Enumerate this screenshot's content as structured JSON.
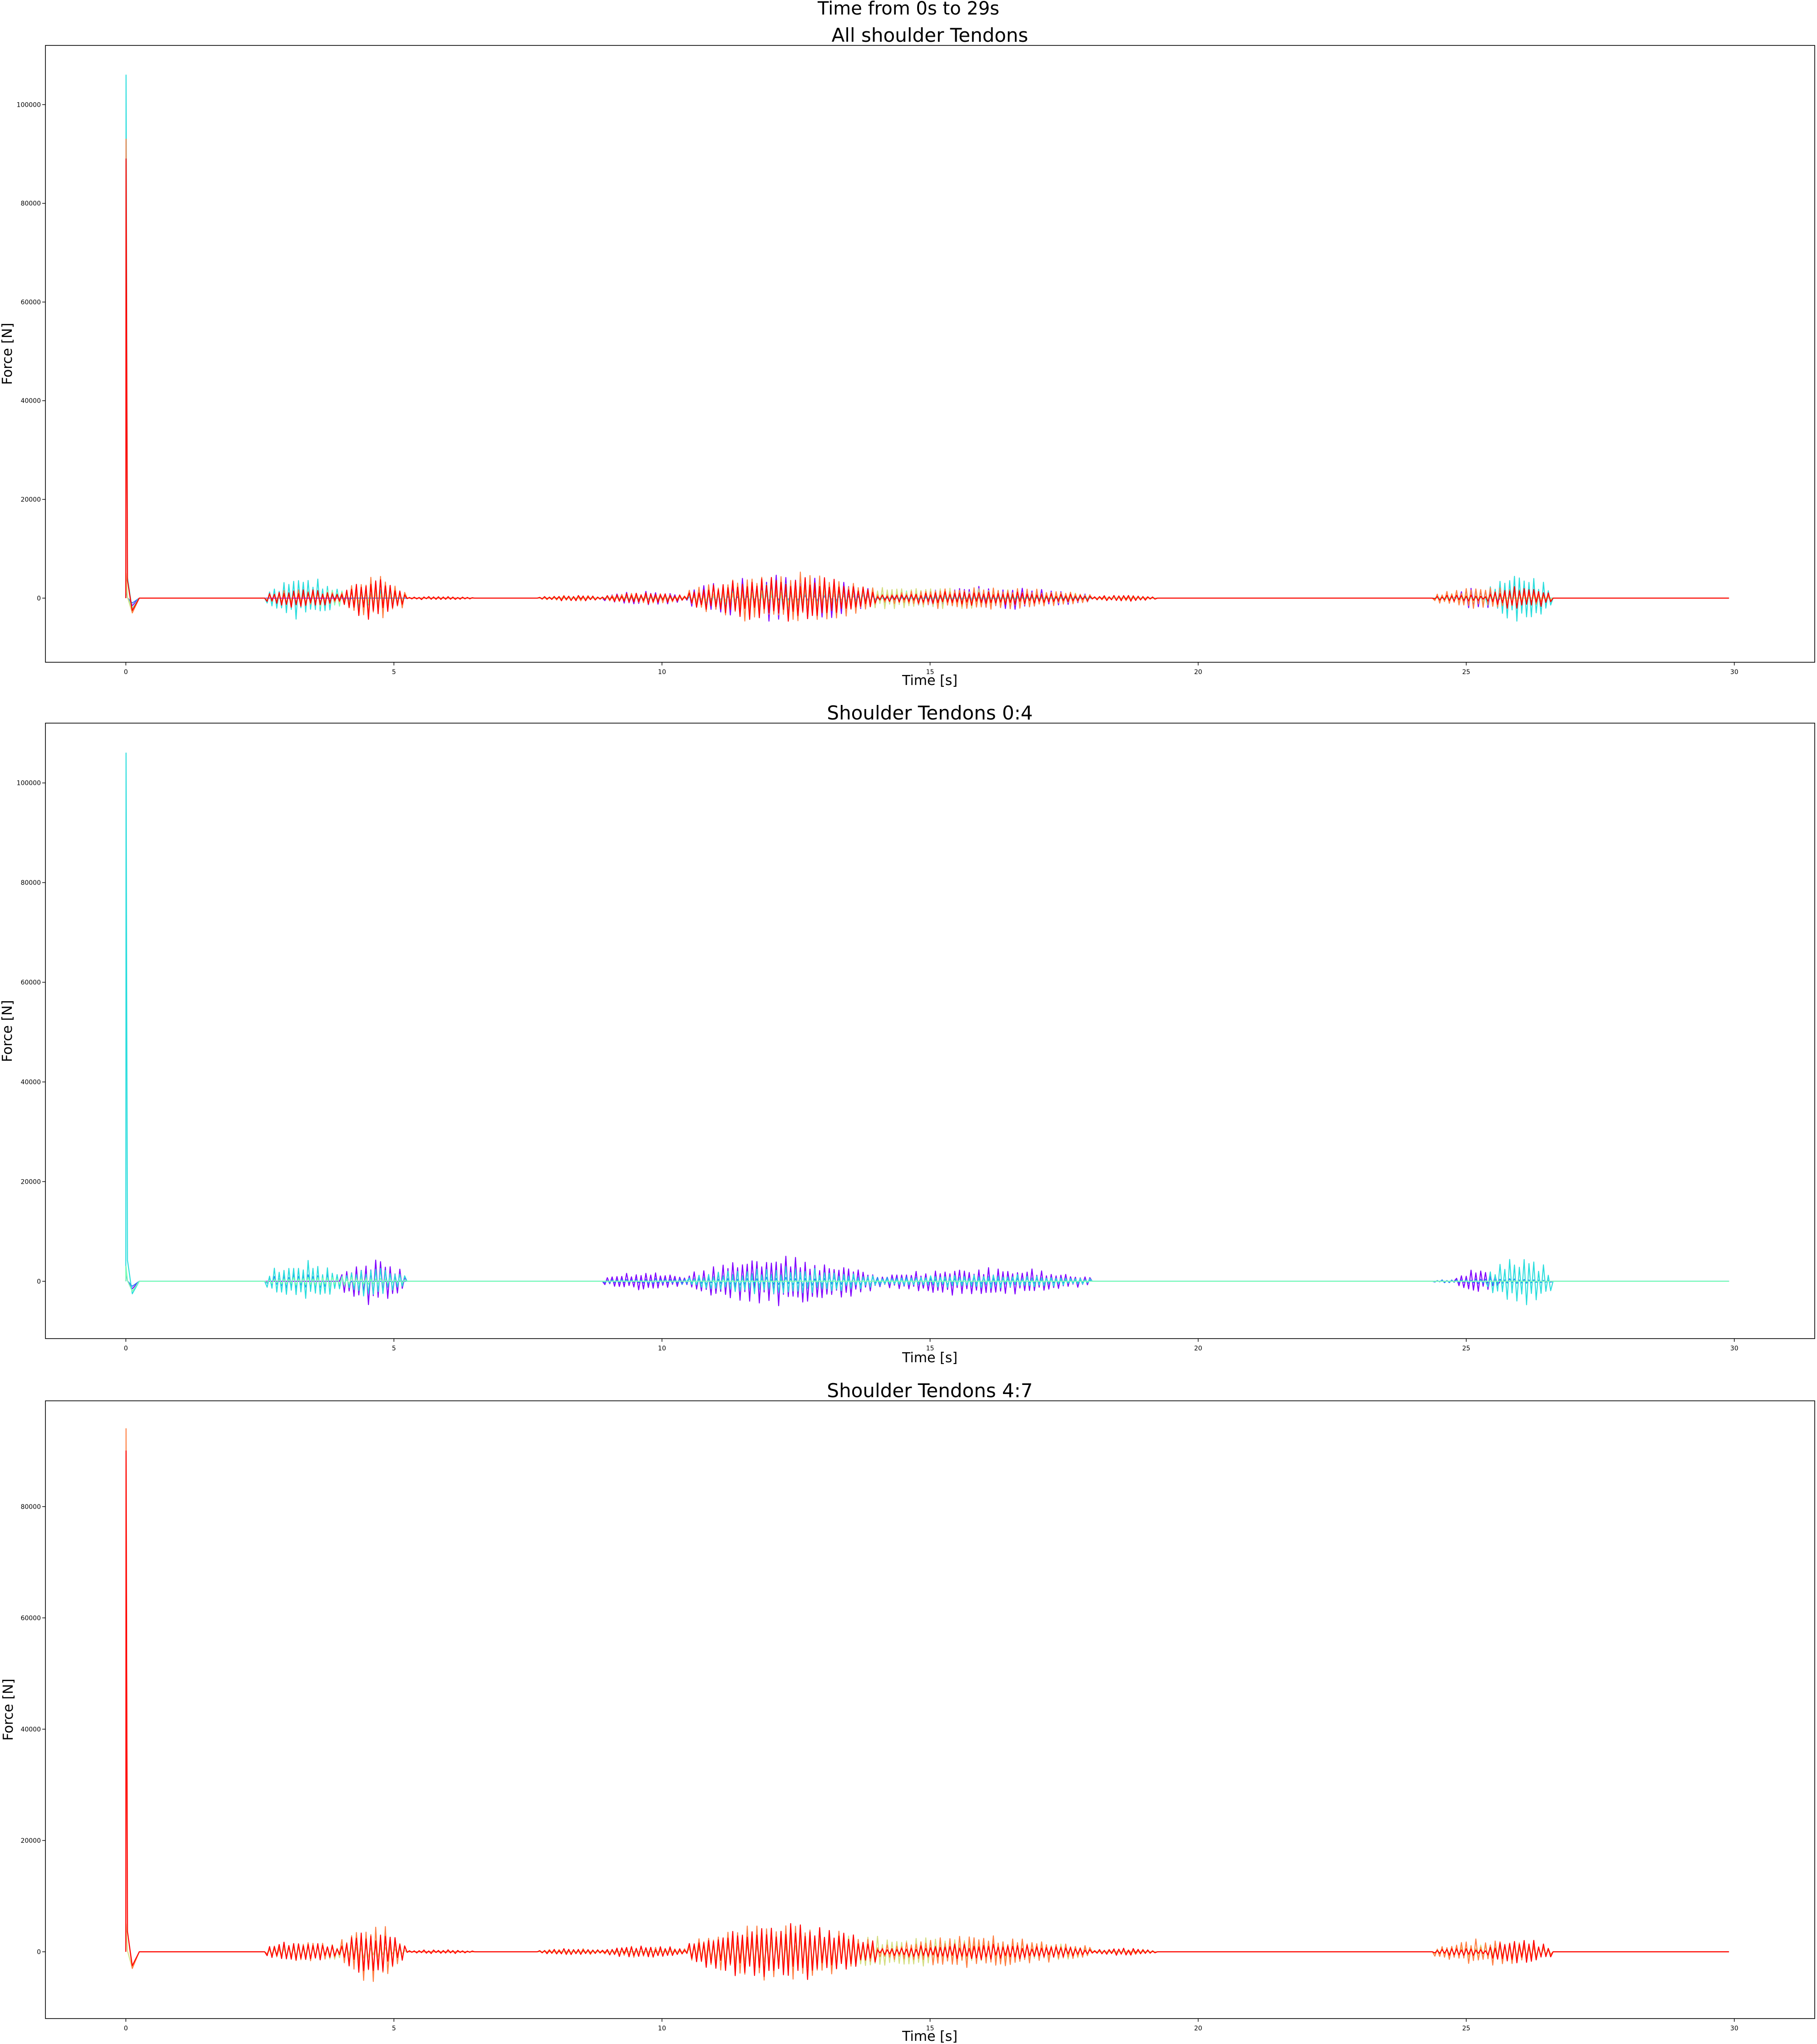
{
  "figure": {
    "suptitle": "Time from 0s to 29s"
  },
  "chart_data": [
    {
      "type": "line",
      "title": "All shoulder Tendons",
      "xlabel": "Time [s]",
      "ylabel": "Force [N]",
      "xlim": [
        -1.5,
        31.5
      ],
      "ylim": [
        -13000,
        112000
      ],
      "xticks": [
        0,
        5,
        10,
        15,
        20,
        25,
        30
      ],
      "yticks": [
        0,
        20000,
        40000,
        60000,
        80000,
        100000
      ],
      "grid": false,
      "legend": "none",
      "series": [
        {
          "color": "#8000ff",
          "initial_peak": 2500,
          "overshoot": -1500,
          "bursts": [
            [
              8.9,
              10.5,
              1500,
              2600
            ],
            [
              10.5,
              14.0,
              5200,
              2900
            ],
            [
              14.0,
              18.0,
              2500,
              3000
            ],
            [
              24.8,
              25.6,
              2500,
              3200
            ]
          ]
        },
        {
          "color": "#2c7ef7",
          "initial_peak": 2000,
          "overshoot": -1000,
          "bursts": [
            [
              2.6,
              4.2,
              1200,
              2400
            ],
            [
              8.9,
              18.0,
              800,
              3100
            ]
          ]
        },
        {
          "color": "#2adddd",
          "initial_peak": 106000,
          "overshoot": -2500,
          "bursts": [
            [
              2.6,
              4.0,
              4500,
              2500
            ],
            [
              4.0,
              5.2,
              3000,
              2600
            ],
            [
              10.5,
              14.0,
              3000,
              2800
            ],
            [
              25.4,
              26.6,
              5500,
              3100
            ]
          ]
        },
        {
          "color": "#80ffb4",
          "initial_peak": 3000,
          "overshoot": -2000,
          "bursts": [
            [
              2.6,
              5.2,
              2000,
              2300
            ],
            [
              10.5,
              18.0,
              1800,
              2700
            ]
          ]
        },
        {
          "color": "#d4dd80",
          "initial_peak": 5000,
          "overshoot": -3000,
          "bursts": [
            [
              2.6,
              5.2,
              1500,
              2400
            ],
            [
              10.5,
              18.0,
              2500,
              2800
            ],
            [
              24.4,
              26.6,
              1500,
              3000
            ]
          ]
        },
        {
          "color": "#ff7e41",
          "initial_peak": 93000,
          "overshoot": -3000,
          "bursts": [
            [
              2.6,
              4.0,
              2000,
              2200
            ],
            [
              4.0,
              5.2,
              5000,
              2500
            ],
            [
              7.7,
              9.0,
              600,
              3300
            ],
            [
              8.9,
              10.5,
              1200,
              2600
            ],
            [
              10.5,
              14.0,
              5500,
              2900
            ],
            [
              14.0,
              18.0,
              2500,
              3000
            ],
            [
              18.0,
              19.2,
              600,
              3300
            ],
            [
              24.4,
              26.6,
              2500,
              3100
            ]
          ]
        },
        {
          "color": "#ff0000",
          "initial_peak": 89000,
          "overshoot": -2500,
          "bursts": [
            [
              2.6,
              4.0,
              2200,
              2200
            ],
            [
              4.0,
              5.2,
              4500,
              2500
            ],
            [
              5.2,
              6.5,
              400,
              3400
            ],
            [
              7.7,
              9.0,
              600,
              3300
            ],
            [
              8.9,
              10.5,
              1200,
              2600
            ],
            [
              10.5,
              14.0,
              5000,
              2900
            ],
            [
              14.0,
              18.0,
              1500,
              3000
            ],
            [
              18.0,
              19.2,
              700,
              3300
            ],
            [
              24.4,
              25.4,
              800,
              3300
            ],
            [
              25.4,
              26.6,
              2500,
              3100
            ]
          ]
        }
      ]
    },
    {
      "type": "line",
      "title": "Shoulder Tendons 0:4",
      "xlabel": "Time [s]",
      "ylabel": "Force [N]",
      "xlim": [
        -1.5,
        31.5
      ],
      "ylim": [
        -11500,
        112000
      ],
      "xticks": [
        0,
        5,
        10,
        15,
        20,
        25,
        30
      ],
      "yticks": [
        0,
        20000,
        40000,
        60000,
        80000,
        100000
      ],
      "grid": false,
      "legend": "none",
      "series": [
        {
          "color": "#8000ff",
          "initial_peak": 2500,
          "overshoot": -1500,
          "bursts": [
            [
              4.0,
              5.2,
              5000,
              2500
            ],
            [
              8.9,
              10.5,
              2000,
              2600
            ],
            [
              10.5,
              14.0,
              5200,
              2900
            ],
            [
              14.0,
              18.0,
              3000,
              3000
            ],
            [
              24.8,
              25.6,
              2500,
              3200
            ]
          ]
        },
        {
          "color": "#2c7ef7",
          "initial_peak": 2000,
          "overshoot": -1000,
          "bursts": [
            [
              2.6,
              4.2,
              1800,
              2400
            ],
            [
              8.9,
              18.0,
              1000,
              3100
            ],
            [
              24.4,
              26.6,
              600,
              3300
            ]
          ]
        },
        {
          "color": "#2adddd",
          "initial_peak": 106000,
          "overshoot": -2500,
          "bursts": [
            [
              2.6,
              4.0,
              4500,
              2500
            ],
            [
              4.0,
              5.2,
              3500,
              2600
            ],
            [
              10.5,
              14.0,
              3000,
              2800
            ],
            [
              14.0,
              18.0,
              1500,
              3000
            ],
            [
              25.4,
              26.6,
              5500,
              3100
            ]
          ]
        },
        {
          "color": "#80ffb4",
          "initial_peak": 3000,
          "overshoot": -2000,
          "bursts": [
            [
              2.6,
              5.2,
              1000,
              2300
            ]
          ]
        }
      ]
    },
    {
      "type": "line",
      "title": "Shoulder Tendons 4:7",
      "xlabel": "Time [s]",
      "ylabel": "Force [N]",
      "xlim": [
        -1.5,
        31.5
      ],
      "ylim": [
        -12000,
        99000
      ],
      "xticks": [
        0,
        5,
        10,
        15,
        20,
        25,
        30
      ],
      "yticks": [
        0,
        20000,
        40000,
        60000,
        80000
      ],
      "grid": false,
      "legend": "none",
      "series": [
        {
          "color": "#d4dd80",
          "initial_peak": 5000,
          "overshoot": -3000,
          "bursts": [
            [
              2.6,
              5.2,
              1500,
              2400
            ],
            [
              10.5,
              18.0,
              3000,
              2800
            ],
            [
              24.4,
              26.6,
              1500,
              3000
            ]
          ]
        },
        {
          "color": "#ff7e41",
          "initial_peak": 94000,
          "overshoot": -3000,
          "bursts": [
            [
              2.6,
              4.0,
              2000,
              2200
            ],
            [
              4.0,
              5.2,
              5500,
              2500
            ],
            [
              7.7,
              9.0,
              600,
              3300
            ],
            [
              8.9,
              10.5,
              1200,
              2600
            ],
            [
              10.5,
              14.0,
              5500,
              2900
            ],
            [
              14.0,
              18.0,
              3000,
              3000
            ],
            [
              18.0,
              19.2,
              600,
              3300
            ],
            [
              24.4,
              26.6,
              2500,
              3100
            ]
          ]
        },
        {
          "color": "#ff0000",
          "initial_peak": 90000,
          "overshoot": -2500,
          "bursts": [
            [
              2.6,
              4.0,
              2200,
              2200
            ],
            [
              4.0,
              5.2,
              4500,
              2500
            ],
            [
              5.2,
              6.5,
              400,
              3400
            ],
            [
              7.7,
              9.0,
              600,
              3300
            ],
            [
              8.9,
              10.5,
              1200,
              2600
            ],
            [
              10.5,
              14.0,
              5500,
              2900
            ],
            [
              14.0,
              18.0,
              1500,
              3000
            ],
            [
              18.0,
              19.2,
              700,
              3300
            ],
            [
              24.4,
              25.4,
              800,
              3300
            ],
            [
              25.4,
              26.6,
              2500,
              3100
            ]
          ]
        }
      ]
    }
  ]
}
